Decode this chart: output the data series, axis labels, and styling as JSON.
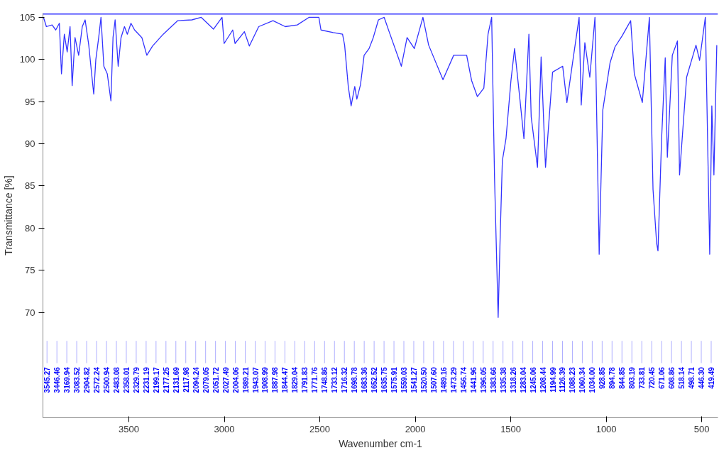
{
  "chart_data": {
    "type": "line",
    "xlabel": "Wavenumber cm-1",
    "ylabel": "Transmittance [%]",
    "xlim": [
      3950,
      415
    ],
    "ylim": [
      57.5,
      105.5
    ],
    "xticks": [
      3500,
      3000,
      2500,
      2000,
      1500,
      1000,
      500
    ],
    "yticks": [
      70,
      75,
      80,
      85,
      90,
      95,
      100,
      105
    ],
    "grid": false,
    "marker": "none",
    "line_style": "solid",
    "ref_lines": [
      {
        "axis": "y",
        "value": 105.4,
        "color": "#3333ff"
      }
    ],
    "series": [
      {
        "color": "#3333ff",
        "x": [
          3947,
          3932,
          3902,
          3883,
          3864,
          3853,
          3838,
          3823,
          3808,
          3797,
          3782,
          3763,
          3744,
          3729,
          3710,
          3695,
          3684,
          3673,
          3658,
          3646,
          3631,
          3613,
          3594,
          3583,
          3572,
          3556,
          3541,
          3523,
          3508,
          3489,
          3470,
          3432,
          3406,
          3376,
          3320,
          3245,
          3170,
          3121,
          3057,
          3012,
          3001,
          2956,
          2944,
          2895,
          2869,
          2820,
          2745,
          2681,
          2618,
          2557,
          2505,
          2494,
          2430,
          2381,
          2370,
          2351,
          2336,
          2317,
          2306,
          2287,
          2268,
          2242,
          2220,
          2193,
          2163,
          2137,
          2073,
          2043,
          2005,
          1960,
          1930,
          1855,
          1799,
          1731,
          1705,
          1675,
          1641,
          1619,
          1600,
          1585,
          1566,
          1555,
          1544,
          1525,
          1499,
          1480,
          1454,
          1431,
          1405,
          1393,
          1360,
          1341,
          1318,
          1281,
          1228,
          1206,
          1179,
          1142,
          1131,
          1112,
          1086,
          1059,
          1037,
          1018,
          980,
          954,
          917,
          872,
          853,
          811,
          774,
          755,
          736,
          729,
          710,
          691,
          680,
          654,
          627,
          616,
          579,
          530,
          511,
          481,
          458,
          447,
          436,
          421
        ],
        "values": [
          105.0,
          103.9,
          104.1,
          103.5,
          104.3,
          98.3,
          103.0,
          100.9,
          103.9,
          96.9,
          102.6,
          100.5,
          103.9,
          104.7,
          101.7,
          98.3,
          95.9,
          100.0,
          102.6,
          105.0,
          99.2,
          98.3,
          95.1,
          102.6,
          104.7,
          99.2,
          102.6,
          103.9,
          103.0,
          104.3,
          103.5,
          102.6,
          100.5,
          101.6,
          103.0,
          104.6,
          104.7,
          105.0,
          103.6,
          105.0,
          101.9,
          103.5,
          101.9,
          103.3,
          101.6,
          103.9,
          104.6,
          103.9,
          104.1,
          105.0,
          105.0,
          103.5,
          103.2,
          103.0,
          101.7,
          96.8,
          94.5,
          96.8,
          95.3,
          97.0,
          100.5,
          101.3,
          102.6,
          104.7,
          105.0,
          103.3,
          99.2,
          102.6,
          101.3,
          105.0,
          101.7,
          97.6,
          100.5,
          100.5,
          97.5,
          95.6,
          96.6,
          103.0,
          105.0,
          86.0,
          69.4,
          79.4,
          88.0,
          90.6,
          97.5,
          101.3,
          95.7,
          90.6,
          103.0,
          93.2,
          87.2,
          100.3,
          87.2,
          98.5,
          99.2,
          94.9,
          99.2,
          105.0,
          94.6,
          102.0,
          97.9,
          105.0,
          76.9,
          94.0,
          99.6,
          101.5,
          102.8,
          104.6,
          98.3,
          94.9,
          105.0,
          84.6,
          78.2,
          77.3,
          90.6,
          100.2,
          88.4,
          100.5,
          102.2,
          86.3,
          97.9,
          101.7,
          99.9,
          105.0,
          76.9,
          94.5,
          86.3,
          101.7
        ]
      }
    ],
    "annotations": [
      "3545.27",
      "3446.46",
      "3169.94",
      "3083.52",
      "2904.82",
      "2572.24",
      "2500.94",
      "2483.08",
      "2358.01",
      "2329.79",
      "2231.19",
      "2199.17",
      "2177.25",
      "2131.69",
      "2117.98",
      "2094.24",
      "2079.05",
      "2051.72",
      "2027.49",
      "2004.06",
      "1989.21",
      "1943.07",
      "1908.99",
      "1887.98",
      "1844.47",
      "1829.04",
      "1791.83",
      "1771.76",
      "1748.86",
      "1733.12",
      "1716.32",
      "1698.78",
      "1683.36",
      "1652.52",
      "1635.75",
      "1575.91",
      "1559.03",
      "1541.27",
      "1520.50",
      "1507.60",
      "1489.16",
      "1473.29",
      "1456.74",
      "1441.96",
      "1396.05",
      "1383.66",
      "1335.38",
      "1318.26",
      "1283.04",
      "1245.06",
      "1208.44",
      "1194.99",
      "1126.39",
      "1088.23",
      "1060.34",
      "1034.00",
      "928.85",
      "894.78",
      "844.85",
      "803.19",
      "733.81",
      "720.45",
      "671.06",
      "608.86",
      "518.14",
      "498.71",
      "446.30",
      "419.49"
    ]
  }
}
